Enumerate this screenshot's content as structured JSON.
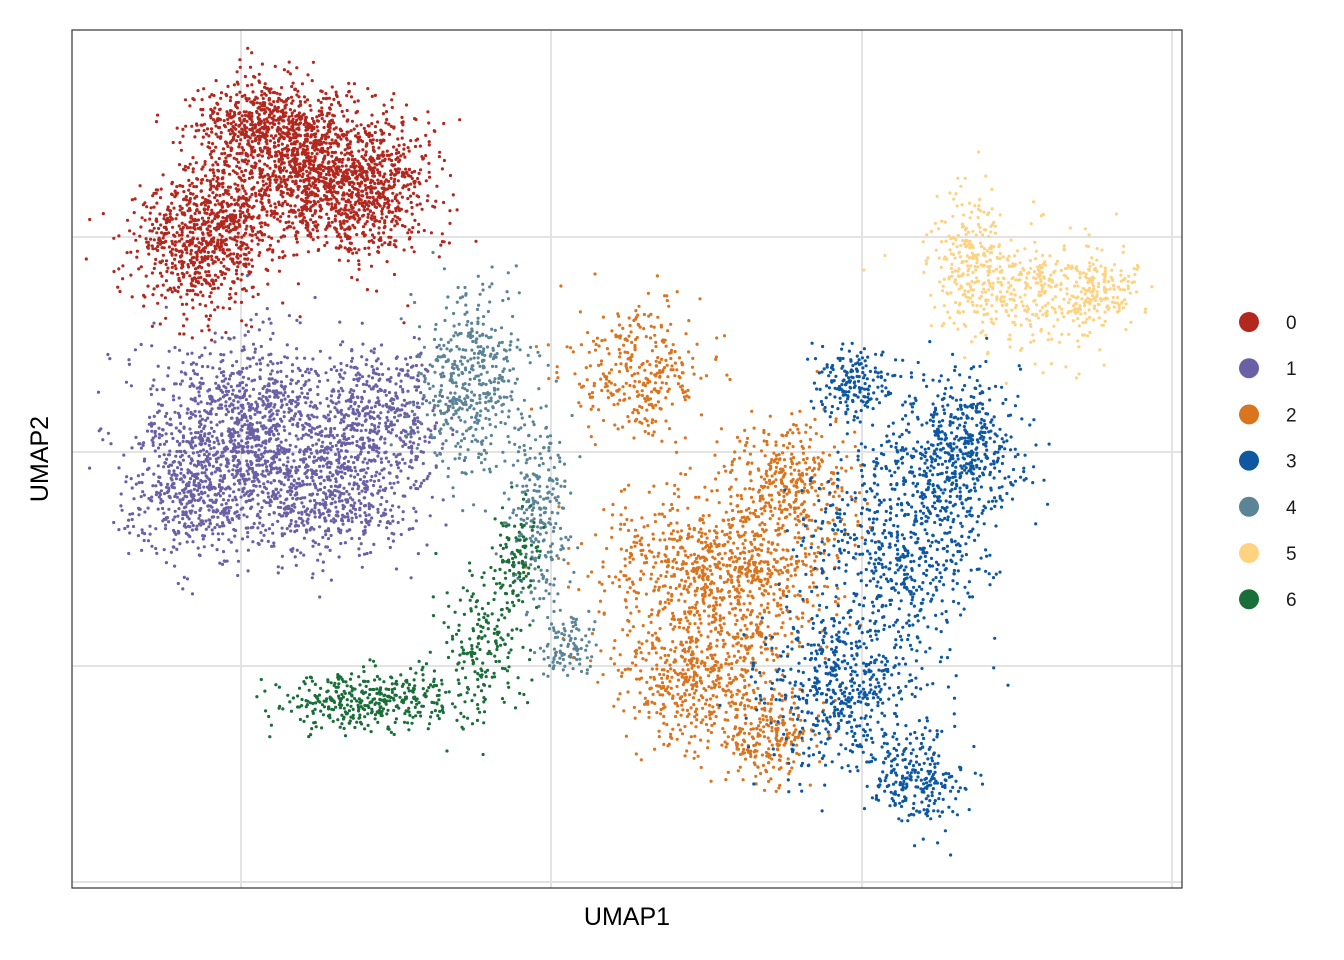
{
  "chart_data": {
    "type": "scatter",
    "title": "",
    "xlabel": "UMAP1",
    "ylabel": "UMAP2",
    "x_ticks_labeled": false,
    "y_ticks_labeled": false,
    "grid": true,
    "legend_placement": "right",
    "series": [
      {
        "name": "0",
        "color": "#B2271E",
        "count": 3000
      },
      {
        "name": "1",
        "color": "#6A60A5",
        "count": 2600
      },
      {
        "name": "2",
        "color": "#D9741F",
        "count": 2300
      },
      {
        "name": "3",
        "color": "#0E58A2",
        "count": 2100
      },
      {
        "name": "4",
        "color": "#5B8596",
        "count": 800
      },
      {
        "name": "5",
        "color": "#FDD382",
        "count": 700
      },
      {
        "name": "6",
        "color": "#1A6E39",
        "count": 700
      }
    ]
  }
}
